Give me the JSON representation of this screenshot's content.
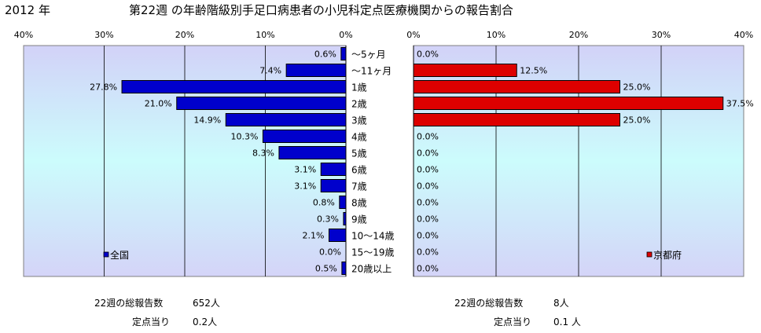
{
  "header": {
    "year": "2012 年",
    "title": "第22週 の年齢階級別手足口病患者の小児科定点医療機関からの報告割合"
  },
  "colors": {
    "left_bar": "#0000cc",
    "right_bar": "#dd0000",
    "bar_edge": "#000000",
    "plot_top": "#d2d2f8",
    "plot_mid": "#ccfcfc",
    "plot_bottom": "#d4d4f8",
    "grid": "#000000"
  },
  "chart_data": [
    {
      "type": "bar",
      "orientation": "horizontal",
      "direction": "right-to-left",
      "categories": [
        "〜5ヶ月",
        "〜11ヶ月",
        "1歳",
        "2歳",
        "3歳",
        "4歳",
        "5歳",
        "6歳",
        "7歳",
        "8歳",
        "9歳",
        "10〜14歳",
        "15〜19歳",
        "20歳以上"
      ],
      "series": [
        {
          "name": "全国",
          "values": [
            0.6,
            7.4,
            27.8,
            21.0,
            14.9,
            10.3,
            8.3,
            3.1,
            3.1,
            0.8,
            0.3,
            2.1,
            0.0,
            0.5
          ]
        }
      ],
      "data_labels": [
        "0.6%",
        "7.4%",
        "27.8%",
        "21.0%",
        "14.9%",
        "10.3%",
        "8.3%",
        "3.1%",
        "3.1%",
        "0.8%",
        "0.3%",
        "2.1%",
        "0.0%",
        "0.5%"
      ],
      "xlim": [
        0,
        40
      ],
      "ticks": [
        "40%",
        "30%",
        "20%",
        "10%",
        "0%"
      ],
      "grid": true,
      "legend": "bottom-left",
      "footer": [
        {
          "label": "22週の総報告数",
          "value": "652人"
        },
        {
          "label": "定点当り",
          "value": "0.2人"
        }
      ]
    },
    {
      "type": "bar",
      "orientation": "horizontal",
      "direction": "left-to-right",
      "categories": [
        "〜5ヶ月",
        "〜11ヶ月",
        "1歳",
        "2歳",
        "3歳",
        "4歳",
        "5歳",
        "6歳",
        "7歳",
        "8歳",
        "9歳",
        "10〜14歳",
        "15〜19歳",
        "20歳以上"
      ],
      "series": [
        {
          "name": "京都府",
          "values": [
            0.0,
            12.5,
            25.0,
            37.5,
            25.0,
            0.0,
            0.0,
            0.0,
            0.0,
            0.0,
            0.0,
            0.0,
            0.0,
            0.0
          ]
        }
      ],
      "data_labels": [
        "0.0%",
        "12.5%",
        "25.0%",
        "37.5%",
        "25.0%",
        "0.0%",
        "0.0%",
        "0.0%",
        "0.0%",
        "0.0%",
        "0.0%",
        "0.0%",
        "0.0%",
        "0.0%"
      ],
      "xlim": [
        0,
        40
      ],
      "ticks": [
        "0%",
        "10%",
        "20%",
        "30%",
        "40%"
      ],
      "grid": true,
      "legend": "bottom-right",
      "footer": [
        {
          "label": "22週の総報告数",
          "value": "8人"
        },
        {
          "label": "定点当り",
          "value": "0.1 人"
        }
      ]
    }
  ]
}
